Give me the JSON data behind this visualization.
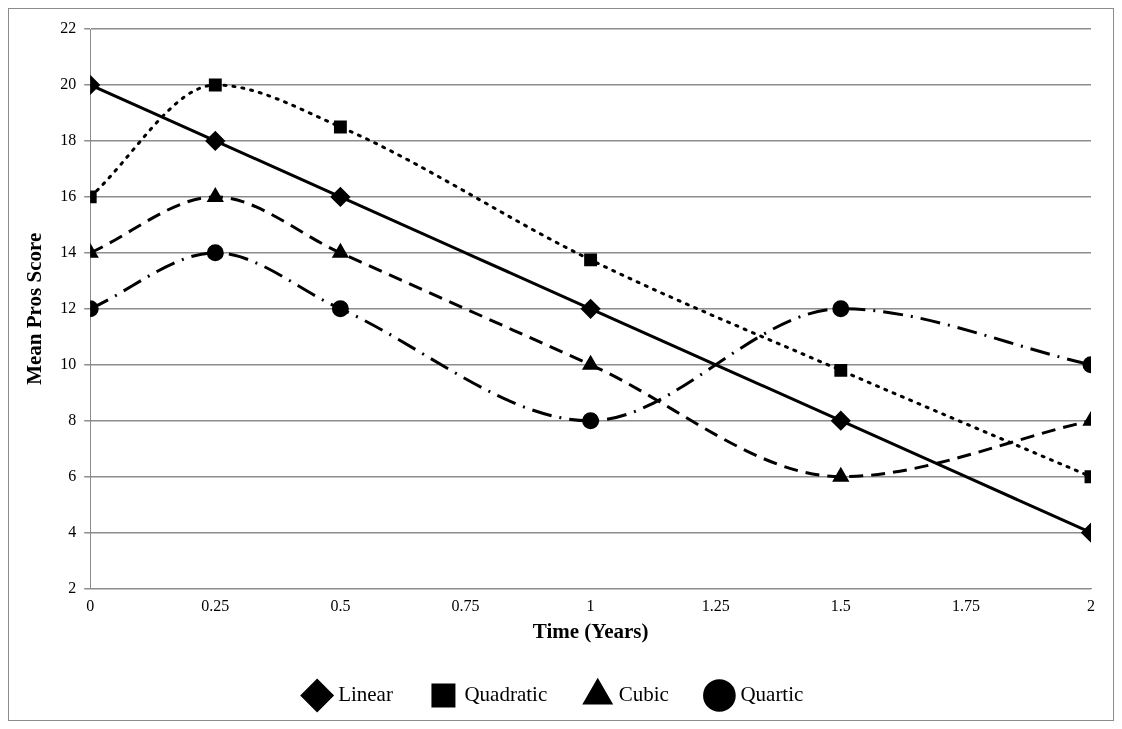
{
  "chart_data": {
    "type": "line",
    "xlabel": "Time (Years)",
    "ylabel": "Mean Pros Score",
    "x": [
      0,
      0.25,
      0.5,
      1,
      1.5,
      2
    ],
    "xlim": [
      0,
      2
    ],
    "xticks": [
      0,
      0.25,
      0.5,
      0.75,
      1,
      1.25,
      1.5,
      1.75,
      2
    ],
    "ylim": [
      2,
      22
    ],
    "yticks": [
      2,
      4,
      6,
      8,
      10,
      12,
      14,
      16,
      18,
      20,
      22
    ],
    "grid": "y",
    "legend": "bottom",
    "series": [
      {
        "name": "Linear",
        "color": "#000000",
        "marker": "diamond",
        "line_style": "solid",
        "values": [
          20,
          18,
          16,
          12,
          8,
          4
        ]
      },
      {
        "name": "Quadratic",
        "color": "#000000",
        "marker": "square",
        "line_style": "dotted",
        "values": [
          16,
          20,
          18.5,
          13.75,
          9.8,
          6
        ]
      },
      {
        "name": "Cubic",
        "color": "#000000",
        "marker": "triangle",
        "line_style": "dashed",
        "values": [
          14,
          16,
          14,
          10,
          6,
          8
        ]
      },
      {
        "name": "Quartic",
        "color": "#000000",
        "marker": "circle",
        "line_style": "dashdot",
        "values": [
          12,
          14,
          12,
          8,
          12,
          10
        ]
      }
    ]
  }
}
